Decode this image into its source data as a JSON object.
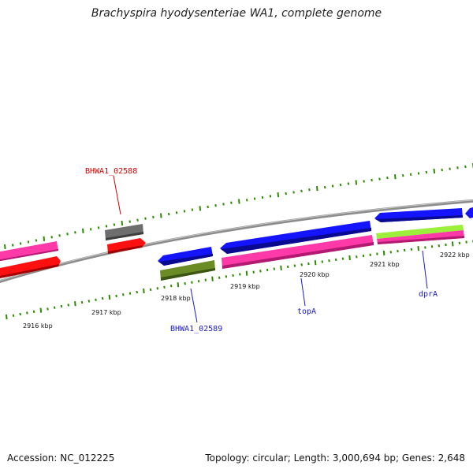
{
  "title": "Brachyspira hyodysenteriae WA1, complete genome",
  "footer": {
    "accession": "Accession: NC_012225",
    "summary": "Topology: circular; Length: 3,000,694 bp; Genes: 2,648"
  },
  "colors": {
    "backbone": "#8c8c8c",
    "tick": "#2e8b00",
    "cds_blue": "#1414ff",
    "cds_red": "#ff1010",
    "cds_pink": "#ff3aa8",
    "cds_grey": "#6e6e6e",
    "cds_olive": "#6b8c24",
    "cds_lime": "#9cf03c",
    "label_red": "#d40000",
    "label_blue": "#1a1acc"
  },
  "scale_labels": [
    "2916 kbp",
    "2917 kbp",
    "2918 kbp",
    "2919 kbp",
    "2920 kbp",
    "2921 kbp",
    "2922 kbp"
  ],
  "gene_labels": [
    {
      "name": "BHWA1_02588",
      "color": "label_red"
    },
    {
      "name": "BHWA1_02589",
      "color": "label_blue"
    },
    {
      "name": "topA",
      "color": "label_blue"
    },
    {
      "name": "dprA",
      "color": "label_blue"
    }
  ]
}
